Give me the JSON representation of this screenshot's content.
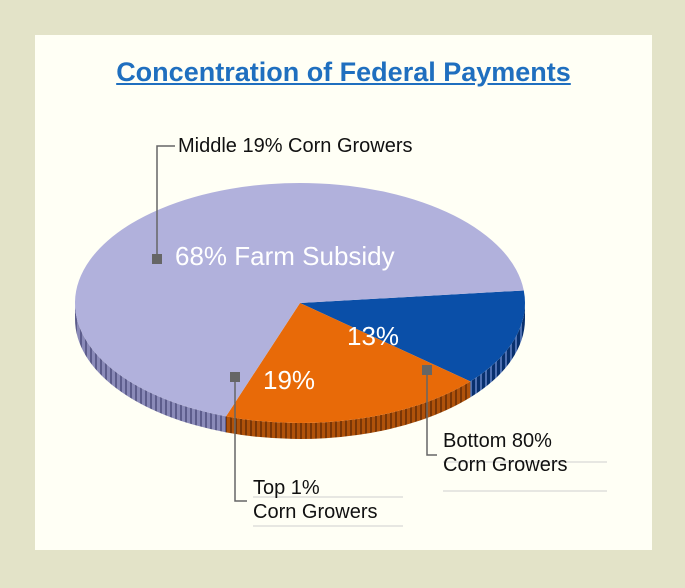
{
  "chart_data": {
    "type": "pie",
    "title": "Concentration of Federal Payments",
    "slices": [
      {
        "label_lines": [
          "Middle 19% Corn Growers"
        ],
        "value": 68,
        "value_label": "68% Farm Subsidy",
        "color": "#b1b1dc"
      },
      {
        "label_lines": [
          "Bottom 80%",
          "Corn Growers"
        ],
        "value": 13,
        "value_label": "13%",
        "color": "#0a4fa8"
      },
      {
        "label_lines": [
          "Top 1%",
          "Corn Growers"
        ],
        "value": 19,
        "value_label": "19%",
        "color": "#e86a08"
      }
    ],
    "colors": {
      "background": "#e3e3c8",
      "panel": "#fffff5",
      "title": "#1f6fbf",
      "leader": "#666666"
    }
  }
}
